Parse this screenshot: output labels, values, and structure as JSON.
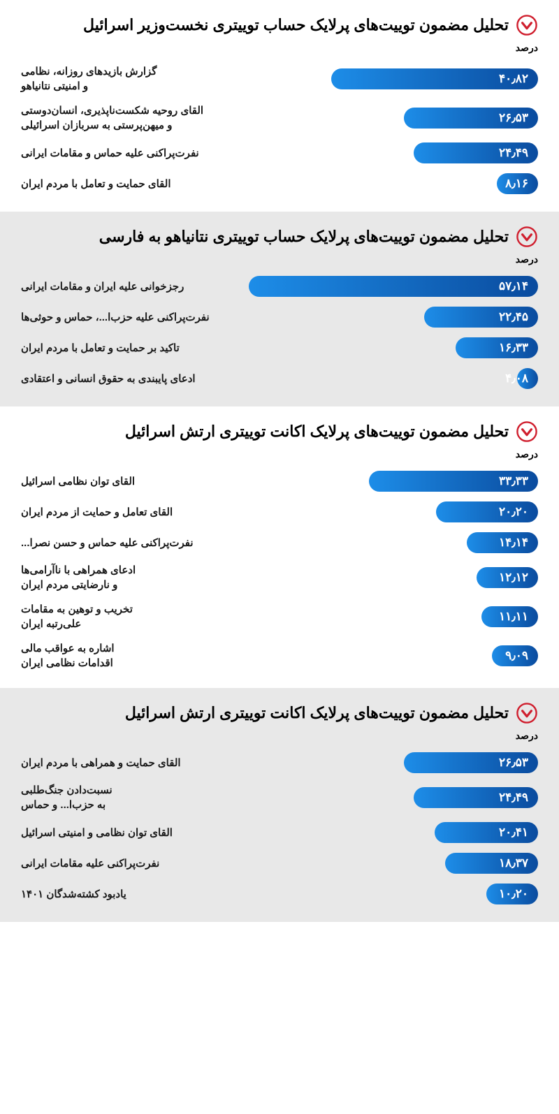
{
  "bar_style": {
    "gradient_start": "#0a4b9e",
    "gradient_end": "#1d8de8",
    "text_color": "#ffffff",
    "height": 30,
    "radius": 15
  },
  "icon_circle_stroke": "#d01f2e",
  "icon_arrow_fill": "#d01f2e",
  "axis_label": "درصد",
  "max_scale": 60,
  "sections": [
    {
      "bg": "white",
      "title": "تحلیل مضمون توییت‌های پرلایک حساب توییتری نخست‌وزیر اسرائیل",
      "bars": [
        {
          "label": "گزارش بازیدهای روزانه، نظامی\nو امنیتی نتانیاهو",
          "value": 40.82,
          "display": "۴۰٫۸۲"
        },
        {
          "label": "القای روحیه شکست‌ناپذیری، انسان‌دوستی\nو میهن‌پرستی به سربازان اسرائیلی",
          "value": 26.53,
          "display": "۲۶٫۵۳"
        },
        {
          "label": "نفرت‌پراکنی علیه حماس و مقامات ایرانی",
          "value": 24.49,
          "display": "۲۴٫۴۹"
        },
        {
          "label": "القای حمایت و تعامل با مردم ایران",
          "value": 8.16,
          "display": "۸٫۱۶"
        }
      ]
    },
    {
      "bg": "grey",
      "title": "تحلیل مضمون توییت‌های پرلایک حساب توییتری نتانیاهو به فارسی",
      "bars": [
        {
          "label": "رجزخوانی علیه ایران و مقامات ایرانی",
          "value": 57.14,
          "display": "۵۷٫۱۴"
        },
        {
          "label": "نفرت‌پراکنی علیه حزب‌ا...، حماس و حوثی‌ها",
          "value": 22.45,
          "display": "۲۲٫۴۵"
        },
        {
          "label": "تاکید بر حمایت و تعامل با مردم ایران",
          "value": 16.33,
          "display": "۱۶٫۳۳"
        },
        {
          "label": "ادعای پایبندی به حقوق انسانی و اعتقادی",
          "value": 4.08,
          "display": "۴٫۰۸"
        }
      ]
    },
    {
      "bg": "white",
      "title": "تحلیل مضمون توییت‌های پرلایک اکانت توییتری ارتش اسرائیل",
      "bars": [
        {
          "label": "القای توان نظامی اسرائیل",
          "value": 33.33,
          "display": "۳۳٫۳۳"
        },
        {
          "label": "القای تعامل و حمایت از مردم ایران",
          "value": 20.2,
          "display": "۲۰٫۲۰"
        },
        {
          "label": "نفرت‌پراکنی علیه حماس و حسن نصرا...",
          "value": 14.14,
          "display": "۱۴٫۱۴"
        },
        {
          "label": "ادعای همراهی با ناآرامی‌ها\nو نارضایتی مردم ایران",
          "value": 12.12,
          "display": "۱۲٫۱۲"
        },
        {
          "label": "تخریب و توهین به مقامات\nعلی‌رتبه ایران",
          "value": 11.11,
          "display": "۱۱٫۱۱"
        },
        {
          "label": "اشاره به عواقب مالی\nاقدامات نظامی ایران",
          "value": 9.09,
          "display": "۹٫۰۹"
        }
      ]
    },
    {
      "bg": "grey",
      "title": "تحلیل مضمون توییت‌های پرلایک اکانت توییتری ارتش اسرائیل",
      "bars": [
        {
          "label": "القای حمایت و همراهی با مردم ایران",
          "value": 26.53,
          "display": "۲۶٫۵۳"
        },
        {
          "label": "نسبت‌دادن جنگ‌طلبی\nبه حزب‌ا... و حماس",
          "value": 24.49,
          "display": "۲۴٫۴۹"
        },
        {
          "label": "القای توان نظامی و امنیتی اسرائیل",
          "value": 20.41,
          "display": "۲۰٫۴۱"
        },
        {
          "label": "نفرت‌پراکنی علیه مقامات ایرانی",
          "value": 18.37,
          "display": "۱۸٫۳۷"
        },
        {
          "label": "یادبود کشته‌شدگان ۱۴۰۱",
          "value": 10.2,
          "display": "۱۰٫۲۰"
        }
      ]
    }
  ]
}
